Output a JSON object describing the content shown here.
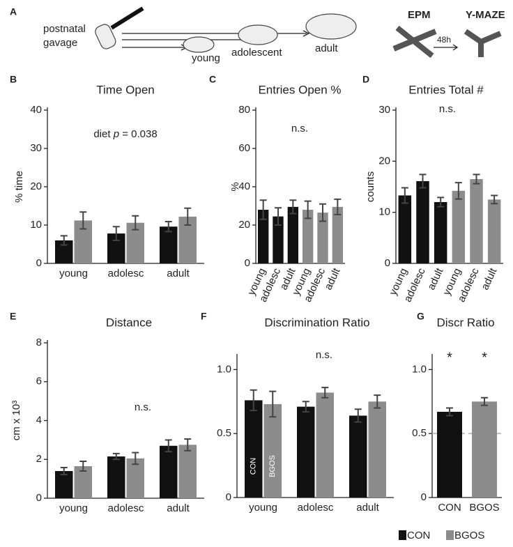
{
  "schematic": {
    "panel": "A",
    "gavage": [
      "postnatal",
      "gavage"
    ],
    "stages": [
      "young",
      "adolescent",
      "adult"
    ],
    "tests": [
      "EPM",
      "48h",
      "Y-MAZE"
    ]
  },
  "chart_data": [
    {
      "type": "bar",
      "panel": "B",
      "title": "Time Open",
      "ylabel": "% time",
      "annotation": [
        "diet",
        "p",
        "= 0.038"
      ],
      "categories": [
        "young",
        "adolesc",
        "adult"
      ],
      "ylim": [
        0,
        40
      ],
      "yticks": [
        0,
        10,
        20,
        30,
        40
      ],
      "series": [
        {
          "name": "CON",
          "color": "#111111",
          "values": [
            6,
            7.8,
            9.6
          ],
          "errors": [
            1.2,
            1.8,
            1.3
          ]
        },
        {
          "name": "BGOS",
          "color": "#8c8c8c",
          "values": [
            11.2,
            10.6,
            12.2
          ],
          "errors": [
            2.2,
            1.8,
            2.2
          ]
        }
      ]
    },
    {
      "type": "bar",
      "panel": "C",
      "title": "Entries Open %",
      "ylabel": "%",
      "annotation": [
        "n.s."
      ],
      "categories": [
        "young",
        "adolesc",
        "adult",
        "young",
        "adolesc",
        "adult"
      ],
      "ylim": [
        0,
        80
      ],
      "yticks": [
        0,
        20,
        40,
        60,
        80
      ],
      "series": [
        {
          "name": "CON",
          "color": "#111111",
          "values": [
            28,
            24.5,
            29.5,
            null,
            null,
            null
          ],
          "errors": [
            5,
            4.5,
            3.5,
            null,
            null,
            null
          ]
        },
        {
          "name": "BGOS",
          "color": "#8c8c8c",
          "values": [
            null,
            null,
            null,
            28,
            26.5,
            29.5
          ],
          "errors": [
            null,
            null,
            null,
            4.5,
            4.5,
            4
          ]
        }
      ]
    },
    {
      "type": "bar",
      "panel": "D",
      "title": "Entries Total #",
      "ylabel": "counts",
      "annotation": [
        "n.s."
      ],
      "categories": [
        "young",
        "adolesc",
        "adult",
        "young",
        "adolesc",
        "adult"
      ],
      "ylim": [
        0,
        30
      ],
      "yticks": [
        0,
        10,
        20,
        30
      ],
      "series": [
        {
          "name": "CON",
          "color": "#111111",
          "values": [
            13.3,
            16.1,
            12,
            null,
            null,
            null
          ],
          "errors": [
            1.5,
            1.3,
            0.9,
            null,
            null,
            null
          ]
        },
        {
          "name": "BGOS",
          "color": "#8c8c8c",
          "values": [
            null,
            null,
            null,
            14.2,
            16.5,
            12.5
          ],
          "errors": [
            null,
            null,
            null,
            1.6,
            0.9,
            0.8
          ]
        }
      ]
    },
    {
      "type": "bar",
      "panel": "E",
      "title": "Distance",
      "ylabel": "cm x 10³",
      "annotation": [
        "n.s."
      ],
      "categories": [
        "young",
        "adolesc",
        "adult"
      ],
      "ylim": [
        0,
        8
      ],
      "yticks": [
        0,
        2,
        4,
        6,
        8
      ],
      "series": [
        {
          "name": "CON",
          "color": "#111111",
          "values": [
            1.4,
            2.15,
            2.7
          ],
          "errors": [
            0.18,
            0.15,
            0.3
          ]
        },
        {
          "name": "BGOS",
          "color": "#8c8c8c",
          "values": [
            1.65,
            2.05,
            2.75
          ],
          "errors": [
            0.25,
            0.3,
            0.3
          ]
        }
      ]
    },
    {
      "type": "bar",
      "panel": "F",
      "title": "Discrimination Ratio",
      "annotation": [
        "n.s."
      ],
      "categories": [
        "young",
        "adolesc",
        "adult"
      ],
      "ylim": [
        0,
        1.1
      ],
      "yticks": [
        0,
        0.5,
        {
          "value": 1,
          "label": "1.0"
        }
      ],
      "series": [
        {
          "name": "CON",
          "color": "#111111",
          "values": [
            0.76,
            0.71,
            0.64
          ],
          "errors": [
            0.08,
            0.04,
            0.05
          ],
          "inner_labels": [
            "CON",
            null,
            null
          ]
        },
        {
          "name": "BGOS",
          "color": "#8c8c8c",
          "values": [
            0.73,
            0.82,
            0.75
          ],
          "errors": [
            0.1,
            0.04,
            0.05
          ],
          "inner_labels": [
            "BGOS",
            null,
            null
          ]
        }
      ]
    },
    {
      "type": "bar",
      "panel": "G",
      "title": "Discr Ratio",
      "legend": "bottom",
      "hline": 0.5,
      "categories": [
        "CON",
        "BGOS"
      ],
      "ylim": [
        0,
        1.1
      ],
      "yticks": [
        0,
        0.5,
        {
          "value": 1,
          "label": "1.0"
        }
      ],
      "series": [
        {
          "name": "CON",
          "color": "#111111",
          "values": [
            0.67,
            null
          ],
          "errors": [
            0.03,
            null
          ],
          "stars": [
            "*",
            null
          ]
        },
        {
          "name": "BGOS",
          "color": "#8c8c8c",
          "values": [
            null,
            0.75
          ],
          "errors": [
            null,
            0.03
          ],
          "stars": [
            null,
            "*"
          ]
        }
      ]
    }
  ]
}
